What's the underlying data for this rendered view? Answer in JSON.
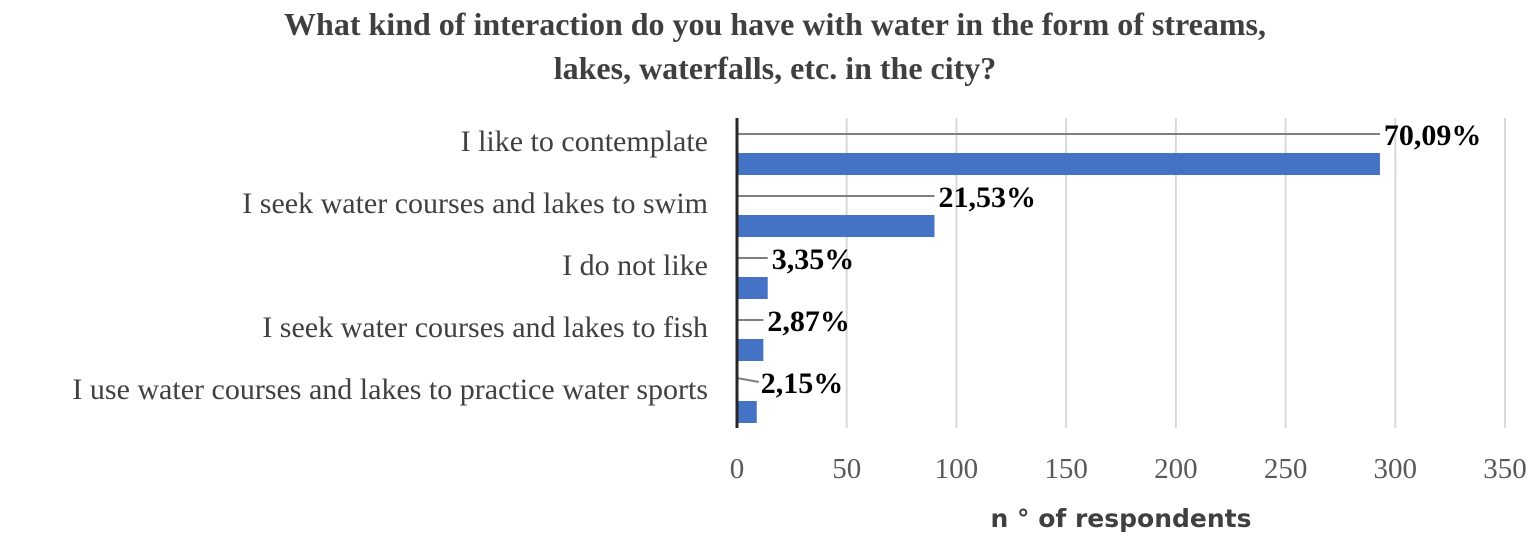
{
  "chart_data": {
    "type": "bar",
    "orientation": "horizontal",
    "title_lines": [
      "What kind of interaction do you have with water in the form of streams,",
      "lakes, waterfalls, etc. in the city?"
    ],
    "categories": [
      "I like to contemplate",
      "I seek water courses and lakes to swim",
      "I do not like",
      "I seek water courses and lakes to fish",
      "I use water courses and lakes to practice water sports"
    ],
    "values": [
      293,
      90,
      14,
      12,
      9
    ],
    "data_labels": [
      "70,09%",
      "21,53%",
      "3,35%",
      "2,87%",
      "2,15%"
    ],
    "xlabel": "n ° of respondents",
    "ylabel": "",
    "xlim": [
      0,
      350
    ],
    "xticks": [
      0,
      50,
      100,
      150,
      200,
      250,
      300,
      350
    ],
    "grid": true,
    "legend": "none",
    "bar_color": "#4472C4"
  }
}
